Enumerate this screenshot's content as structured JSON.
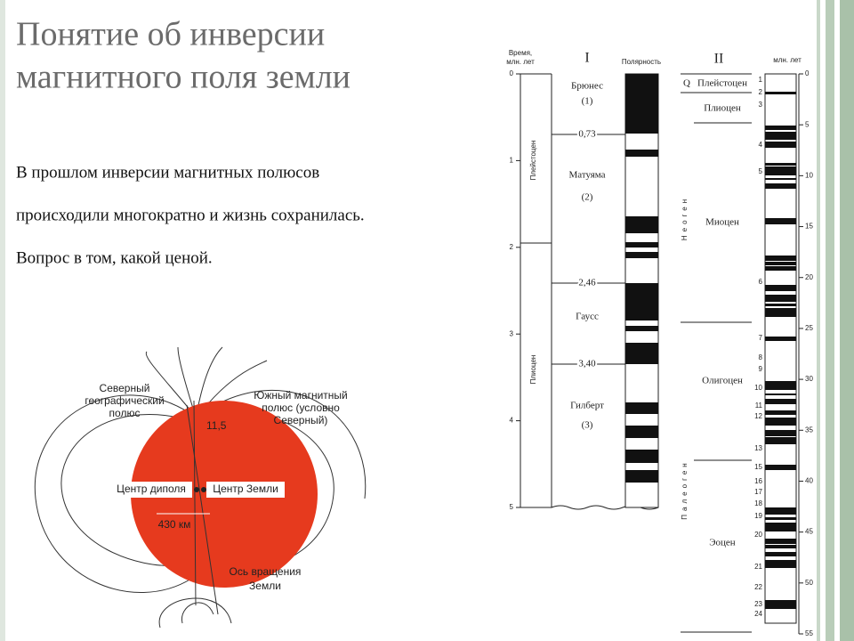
{
  "title": {
    "lines": [
      "Понятие об инверсии",
      "магнитного поля земли"
    ]
  },
  "body": {
    "lines": [
      "В прошлом инверсии магнитных полюсов",
      "происходили многократно и жизнь сохранилась.",
      "Вопрос в том, какой ценой."
    ]
  },
  "globe": {
    "north_geo": [
      "Северный",
      "географический",
      "полюс"
    ],
    "south_mag": [
      "Южный магнитный",
      "полюс (условно",
      "Северный)"
    ],
    "angle": "11,5",
    "dipole_center": "Центр диполя",
    "earth_center": "Центр Земли",
    "offset": "430 км",
    "axis": [
      "Ось вращения",
      "Земли"
    ]
  },
  "scale_1": {
    "time_label": [
      "Время,",
      "млн. лет"
    ],
    "numeral": "I",
    "polarity": "Полярность",
    "ticks": [
      0,
      1,
      2,
      3,
      4,
      5
    ],
    "epochs": [
      "Плейстоцен",
      "Плиоцен"
    ],
    "chrons": [
      {
        "name": "Брюнес",
        "number": "(1)"
      },
      {
        "name": "Матуяма",
        "number": "(2)"
      },
      {
        "name": "Гаусс"
      },
      {
        "name": "Гилберт",
        "number": "(3)"
      }
    ],
    "boundaries": [
      "0,73",
      "2,46",
      "3,40"
    ]
  },
  "scale_2": {
    "numeral": "II",
    "unit": "млн. лет",
    "ticks": [
      0,
      5,
      10,
      15,
      20,
      25,
      30,
      35,
      40,
      45,
      50,
      55
    ],
    "q": "Q",
    "epochs": [
      "Плейстоцен",
      "Плиоцен",
      "Миоцен",
      "Олигоцен",
      "Эоцен"
    ],
    "periods": [
      "Неоген",
      "Палеоген"
    ],
    "anomalies": [
      "1",
      "2",
      "3",
      "4",
      "5",
      "6",
      "7",
      "8",
      "9",
      "10",
      "11",
      "12",
      "13",
      "15",
      "16",
      "17",
      "18",
      "19",
      "20",
      "21",
      "22",
      "23",
      "24"
    ]
  }
}
